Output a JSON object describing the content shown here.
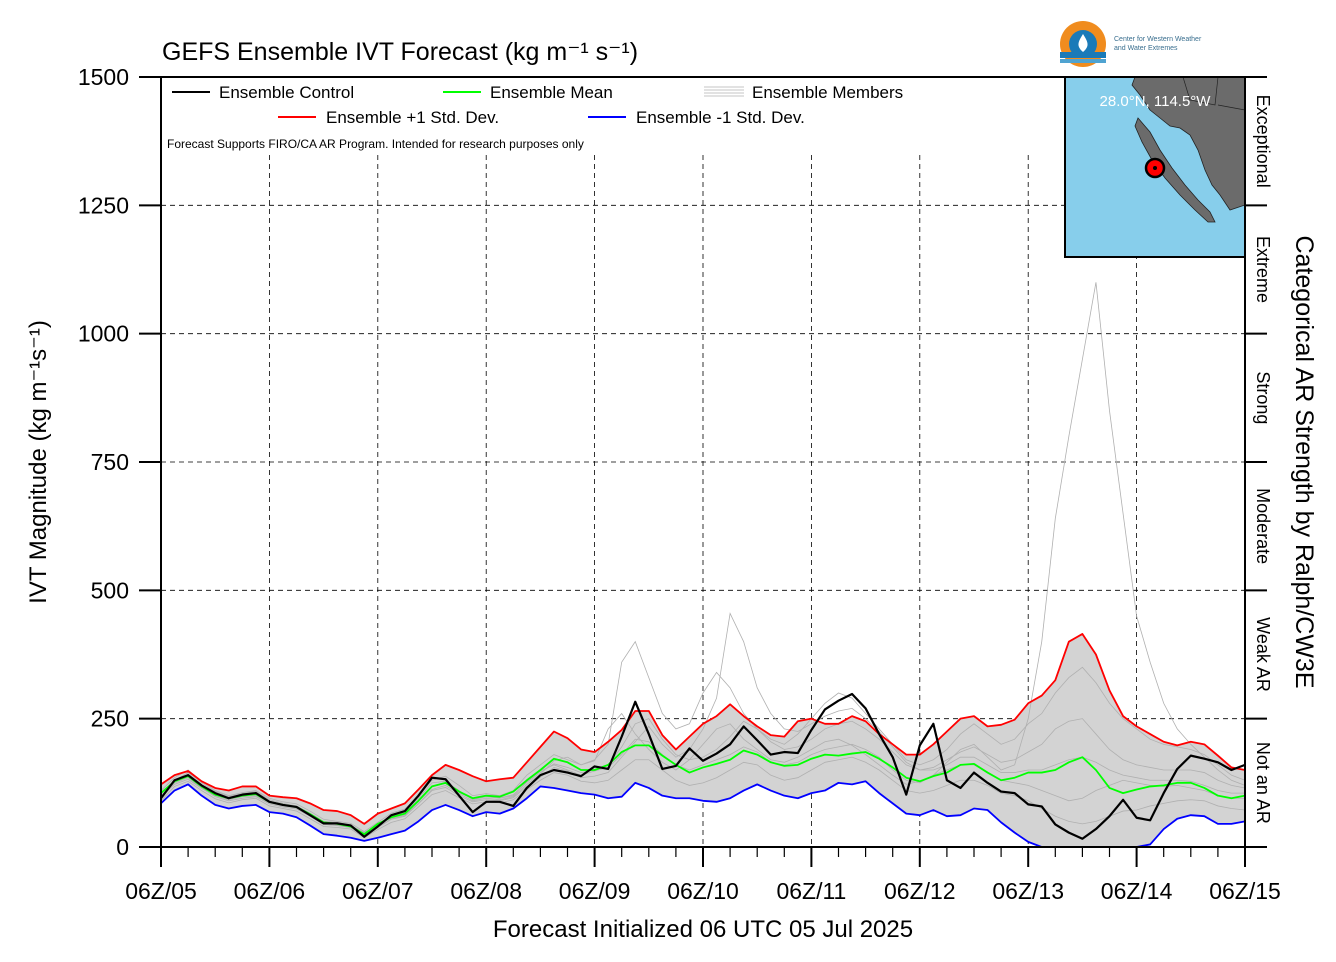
{
  "colors": {
    "control": "#000000",
    "mean": "#00ff00",
    "plus_std": "#ff0000",
    "minus_std": "#0000ff",
    "members": "#b0b0b0",
    "spread_fill": "#d3d3d3",
    "map_ocean": "#87ceeb",
    "map_land": "#6b6b6b"
  },
  "logo": {
    "line1": "Center for Western Weather",
    "line2": "and Water Extremes"
  },
  "inset": {
    "location": "28.0°N, 114.5°W"
  },
  "note": "Forecast Supports FIRO/CA AR Program. Intended for research purposes only",
  "chart_data": {
    "type": "line",
    "title": "GEFS Ensemble IVT Forecast (kg m",
    "title_unit": "⁻¹ s⁻¹)",
    "xlabel": "Forecast Initialized 06 UTC 05 Jul 2025",
    "ylabel": "IVT Magnitude (kg m⁻¹s⁻¹)",
    "right_label": "Categorical AR Strength by Ralph/CW3E",
    "ylim": [
      0,
      1500
    ],
    "yticks": [
      0,
      250,
      500,
      750,
      1000,
      1250,
      1500
    ],
    "xlim": [
      0,
      240
    ],
    "x_unit": "forecast hour",
    "xticks": [
      {
        "x": 0,
        "label": "06Z/05"
      },
      {
        "x": 24,
        "label": "06Z/06"
      },
      {
        "x": 48,
        "label": "06Z/07"
      },
      {
        "x": 72,
        "label": "06Z/08"
      },
      {
        "x": 96,
        "label": "06Z/09"
      },
      {
        "x": 120,
        "label": "06Z/10"
      },
      {
        "x": 144,
        "label": "06Z/11"
      },
      {
        "x": 168,
        "label": "06Z/12"
      },
      {
        "x": 192,
        "label": "06Z/13"
      },
      {
        "x": 216,
        "label": "06Z/14"
      },
      {
        "x": 240,
        "label": "06Z/15"
      }
    ],
    "grid": true,
    "legend": {
      "placement": "top",
      "entries": [
        {
          "label": "Ensemble Control",
          "key": "control"
        },
        {
          "label": "Ensemble Mean",
          "key": "mean"
        },
        {
          "label": "Ensemble Members",
          "key": "members"
        },
        {
          "label": "Ensemble +1 Std. Dev.",
          "key": "plus_std"
        },
        {
          "label": "Ensemble -1 Std. Dev.",
          "key": "minus_std"
        }
      ]
    },
    "categories": [
      {
        "name": "Not an AR",
        "range": [
          0,
          250
        ]
      },
      {
        "name": "Weak AR",
        "range": [
          250,
          500
        ]
      },
      {
        "name": "Moderate",
        "range": [
          500,
          750
        ]
      },
      {
        "name": "Strong",
        "range": [
          750,
          1000
        ]
      },
      {
        "name": "Extreme",
        "range": [
          1000,
          1250
        ]
      },
      {
        "name": "Exceptional",
        "range": [
          1250,
          1500
        ]
      }
    ],
    "series": [
      {
        "name": "Ensemble Control",
        "key": "control",
        "x": [
          0,
          3,
          6,
          9,
          12,
          15,
          18,
          21,
          24,
          27,
          30,
          33,
          36,
          39,
          42,
          45,
          48,
          51,
          54,
          57,
          60,
          63,
          66,
          69,
          72,
          75,
          78,
          81,
          84,
          87,
          90,
          93,
          96,
          99,
          102,
          105,
          108,
          111,
          114,
          117,
          120,
          123,
          126,
          129,
          132,
          135,
          138,
          141,
          144,
          147,
          150,
          153,
          156,
          159,
          162,
          165,
          168,
          171,
          174,
          177,
          180,
          183,
          186,
          189,
          192,
          195,
          198,
          201,
          204,
          207,
          210,
          213,
          216,
          219,
          222,
          225,
          228,
          231,
          234,
          237,
          240
        ],
        "y": [
          95,
          130,
          140,
          120,
          105,
          95,
          102,
          105,
          88,
          82,
          78,
          62,
          46,
          46,
          42,
          20,
          40,
          62,
          70,
          100,
          135,
          132,
          100,
          68,
          88,
          88,
          80,
          115,
          140,
          150,
          145,
          138,
          157,
          152,
          215,
          283,
          220,
          152,
          158,
          192,
          168,
          182,
          200,
          235,
          208,
          180,
          185,
          183,
          228,
          268,
          285,
          298,
          270,
          220,
          175,
          102,
          198,
          240,
          130,
          115,
          145,
          125,
          108,
          105,
          83,
          79,
          44,
          28,
          16,
          35,
          60,
          92,
          57,
          52,
          105,
          152,
          178,
          172,
          165,
          150,
          160
        ]
      },
      {
        "name": "Ensemble Mean",
        "key": "mean",
        "x": [
          0,
          3,
          6,
          9,
          12,
          15,
          18,
          21,
          24,
          27,
          30,
          33,
          36,
          39,
          42,
          45,
          48,
          51,
          54,
          57,
          60,
          63,
          66,
          69,
          72,
          75,
          78,
          81,
          84,
          87,
          90,
          93,
          96,
          99,
          102,
          105,
          108,
          111,
          114,
          117,
          120,
          123,
          126,
          129,
          132,
          135,
          138,
          141,
          144,
          147,
          150,
          153,
          156,
          159,
          162,
          165,
          168,
          171,
          174,
          177,
          180,
          183,
          186,
          189,
          192,
          195,
          198,
          201,
          204,
          207,
          210,
          213,
          216,
          219,
          222,
          225,
          228,
          231,
          234,
          237,
          240
        ],
        "y": [
          105,
          128,
          138,
          118,
          102,
          95,
          100,
          103,
          88,
          82,
          78,
          64,
          48,
          45,
          40,
          25,
          45,
          58,
          65,
          90,
          118,
          125,
          108,
          95,
          100,
          98,
          108,
          130,
          150,
          172,
          165,
          150,
          150,
          160,
          185,
          198,
          198,
          178,
          160,
          145,
          155,
          162,
          170,
          188,
          180,
          165,
          158,
          160,
          172,
          180,
          178,
          182,
          185,
          172,
          155,
          135,
          128,
          138,
          145,
          160,
          162,
          145,
          130,
          135,
          145,
          145,
          150,
          165,
          175,
          150,
          115,
          105,
          112,
          118,
          120,
          125,
          125,
          115,
          100,
          95,
          100
        ]
      },
      {
        "name": "Ensemble +1 Std. Dev.",
        "key": "plus_std",
        "x": [
          0,
          3,
          6,
          9,
          12,
          15,
          18,
          21,
          24,
          27,
          30,
          33,
          36,
          39,
          42,
          45,
          48,
          51,
          54,
          57,
          60,
          63,
          66,
          69,
          72,
          75,
          78,
          81,
          84,
          87,
          90,
          93,
          96,
          99,
          102,
          105,
          108,
          111,
          114,
          117,
          120,
          123,
          126,
          129,
          132,
          135,
          138,
          141,
          144,
          147,
          150,
          153,
          156,
          159,
          162,
          165,
          168,
          171,
          174,
          177,
          180,
          183,
          186,
          189,
          192,
          195,
          198,
          201,
          204,
          207,
          210,
          213,
          216,
          219,
          222,
          225,
          228,
          231,
          234,
          237,
          240
        ],
        "y": [
          122,
          140,
          148,
          128,
          115,
          110,
          118,
          118,
          100,
          97,
          95,
          85,
          72,
          70,
          62,
          45,
          65,
          75,
          85,
          112,
          140,
          160,
          150,
          138,
          128,
          132,
          135,
          165,
          195,
          225,
          212,
          190,
          185,
          205,
          228,
          265,
          265,
          218,
          190,
          215,
          240,
          255,
          278,
          255,
          235,
          218,
          215,
          245,
          250,
          240,
          240,
          255,
          245,
          220,
          200,
          180,
          180,
          200,
          225,
          250,
          255,
          235,
          238,
          248,
          280,
          295,
          325,
          400,
          415,
          375,
          305,
          255,
          235,
          220,
          205,
          198,
          205,
          200,
          178,
          155,
          150
        ]
      },
      {
        "name": "Ensemble -1 Std. Dev.",
        "key": "minus_std",
        "x": [
          0,
          3,
          6,
          9,
          12,
          15,
          18,
          21,
          24,
          27,
          30,
          33,
          36,
          39,
          42,
          45,
          48,
          51,
          54,
          57,
          60,
          63,
          66,
          69,
          72,
          75,
          78,
          81,
          84,
          87,
          90,
          93,
          96,
          99,
          102,
          105,
          108,
          111,
          114,
          117,
          120,
          123,
          126,
          129,
          132,
          135,
          138,
          141,
          144,
          147,
          150,
          153,
          156,
          159,
          162,
          165,
          168,
          171,
          174,
          177,
          180,
          183,
          186,
          189,
          192,
          195,
          198,
          201,
          204,
          207,
          210,
          213,
          216,
          219,
          222,
          225,
          228,
          231,
          234,
          237,
          240
        ],
        "y": [
          85,
          110,
          122,
          100,
          82,
          75,
          80,
          82,
          68,
          65,
          58,
          42,
          25,
          22,
          18,
          12,
          18,
          25,
          32,
          50,
          72,
          82,
          72,
          60,
          68,
          65,
          75,
          95,
          118,
          115,
          110,
          105,
          102,
          95,
          98,
          125,
          115,
          100,
          95,
          95,
          90,
          88,
          95,
          110,
          122,
          110,
          100,
          95,
          105,
          110,
          125,
          122,
          128,
          105,
          85,
          65,
          62,
          72,
          60,
          62,
          75,
          72,
          48,
          28,
          10,
          0,
          0,
          0,
          0,
          0,
          0,
          0,
          0,
          5,
          35,
          55,
          62,
          60,
          45,
          45,
          50
        ]
      }
    ],
    "members": [
      [
        105,
        130,
        145,
        125,
        108,
        98,
        104,
        108,
        92,
        85,
        80,
        66,
        50,
        48,
        42,
        28,
        42,
        60,
        68,
        95,
        125,
        128,
        110,
        92,
        98,
        95,
        100,
        128,
        148,
        160,
        150,
        140,
        148,
        155,
        180,
        210,
        205,
        180,
        160,
        150,
        160,
        170,
        180,
        195,
        185,
        165,
        160,
        165,
        180,
        190,
        195,
        200,
        190,
        175,
        150,
        130,
        125,
        140,
        150,
        160,
        160,
        145,
        130,
        125,
        120,
        110,
        100,
        90,
        95,
        110,
        120,
        130,
        125,
        120,
        118,
        120,
        115,
        110,
        100,
        95,
        95
      ],
      [
        95,
        125,
        135,
        115,
        98,
        90,
        95,
        98,
        84,
        78,
        74,
        60,
        44,
        42,
        38,
        22,
        38,
        55,
        62,
        85,
        112,
        120,
        104,
        90,
        95,
        92,
        98,
        122,
        142,
        168,
        175,
        160,
        168,
        230,
        260,
        220,
        190,
        165,
        150,
        170,
        200,
        230,
        240,
        210,
        190,
        170,
        165,
        175,
        190,
        205,
        210,
        198,
        180,
        160,
        140,
        122,
        128,
        140,
        165,
        190,
        200,
        175,
        150,
        160,
        250,
        400,
        640,
        800,
        950,
        1100,
        850,
        650,
        450,
        360,
        280,
        230,
        200,
        175,
        150,
        130,
        120
      ],
      [
        110,
        135,
        150,
        128,
        110,
        100,
        106,
        110,
        95,
        88,
        84,
        70,
        54,
        50,
        46,
        30,
        48,
        66,
        74,
        100,
        130,
        138,
        120,
        100,
        104,
        100,
        110,
        140,
        160,
        180,
        170,
        160,
        170,
        200,
        360,
        400,
        330,
        260,
        230,
        240,
        300,
        340,
        310,
        260,
        230,
        210,
        200,
        220,
        250,
        280,
        300,
        290,
        260,
        230,
        200,
        170,
        160,
        170,
        190,
        220,
        240,
        220,
        200,
        210,
        240,
        260,
        300,
        330,
        350,
        320,
        280,
        250,
        230,
        210,
        200,
        195,
        190,
        180,
        160,
        140,
        130
      ],
      [
        100,
        128,
        140,
        120,
        104,
        94,
        100,
        104,
        88,
        82,
        78,
        62,
        46,
        44,
        40,
        24,
        40,
        58,
        66,
        90,
        118,
        124,
        106,
        94,
        98,
        96,
        102,
        126,
        145,
        162,
        155,
        145,
        150,
        160,
        195,
        240,
        250,
        210,
        180,
        170,
        175,
        190,
        215,
        245,
        230,
        205,
        190,
        195,
        210,
        230,
        240,
        245,
        230,
        210,
        185,
        160,
        150,
        155,
        170,
        185,
        195,
        180,
        165,
        170,
        185,
        200,
        230,
        245,
        250,
        220,
        190,
        170,
        160,
        155,
        150,
        150,
        150,
        145,
        130,
        120,
        115
      ],
      [
        90,
        118,
        128,
        110,
        94,
        86,
        92,
        95,
        80,
        75,
        70,
        55,
        40,
        38,
        35,
        18,
        34,
        48,
        55,
        78,
        102,
        110,
        96,
        84,
        88,
        86,
        92,
        112,
        130,
        145,
        140,
        128,
        125,
        130,
        150,
        170,
        170,
        150,
        130,
        120,
        125,
        135,
        150,
        165,
        160,
        140,
        130,
        135,
        150,
        165,
        170,
        175,
        165,
        150,
        130,
        110,
        105,
        110,
        120,
        130,
        130,
        120,
        105,
        100,
        90,
        75,
        60,
        50,
        45,
        50,
        60,
        70,
        72,
        80,
        85,
        90,
        92,
        90,
        80,
        75,
        72
      ],
      [
        98,
        122,
        132,
        114,
        100,
        92,
        98,
        100,
        86,
        80,
        76,
        60,
        44,
        42,
        38,
        20,
        38,
        54,
        60,
        84,
        110,
        116,
        100,
        88,
        92,
        90,
        96,
        118,
        136,
        155,
        148,
        135,
        138,
        145,
        175,
        205,
        235,
        200,
        175,
        190,
        230,
        290,
        455,
        400,
        310,
        260,
        230,
        225,
        240,
        255,
        265,
        270,
        250,
        225,
        195,
        165,
        150,
        150,
        160,
        175,
        175,
        160,
        145,
        145,
        150,
        150,
        160,
        170,
        175,
        165,
        150,
        140,
        135,
        130,
        130,
        130,
        128,
        120,
        110,
        105,
        105
      ]
    ]
  }
}
